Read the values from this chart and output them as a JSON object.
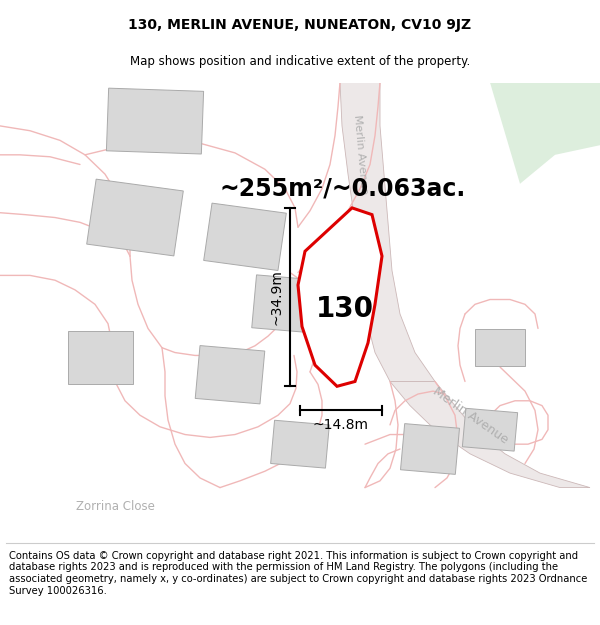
{
  "title": "130, MERLIN AVENUE, NUNEATON, CV10 9JZ",
  "subtitle": "Map shows position and indicative extent of the property.",
  "area_text": "~255m²/~0.063ac.",
  "dim_width": "~14.8m",
  "dim_height": "~34.9m",
  "plot_number": "130",
  "footer": "Contains OS data © Crown copyright and database right 2021. This information is subject to Crown copyright and database rights 2023 and is reproduced with the permission of HM Land Registry. The polygons (including the associated geometry, namely x, y co-ordinates) are subject to Crown copyright and database rights 2023 Ordnance Survey 100026316.",
  "bg_color": "#ffffff",
  "map_bg": "#f7f4f4",
  "road_color": "#f0b8b8",
  "building_color": "#d8d8d8",
  "building_edge": "#aaaaaa",
  "plot_color": "#dd0000",
  "street_label_color": "#b0b0b0",
  "green_color": "#ddeedd",
  "title_fontsize": 10,
  "subtitle_fontsize": 8.5,
  "area_fontsize": 17,
  "dim_fontsize": 10,
  "plot_number_fontsize": 20,
  "footer_fontsize": 7.2
}
